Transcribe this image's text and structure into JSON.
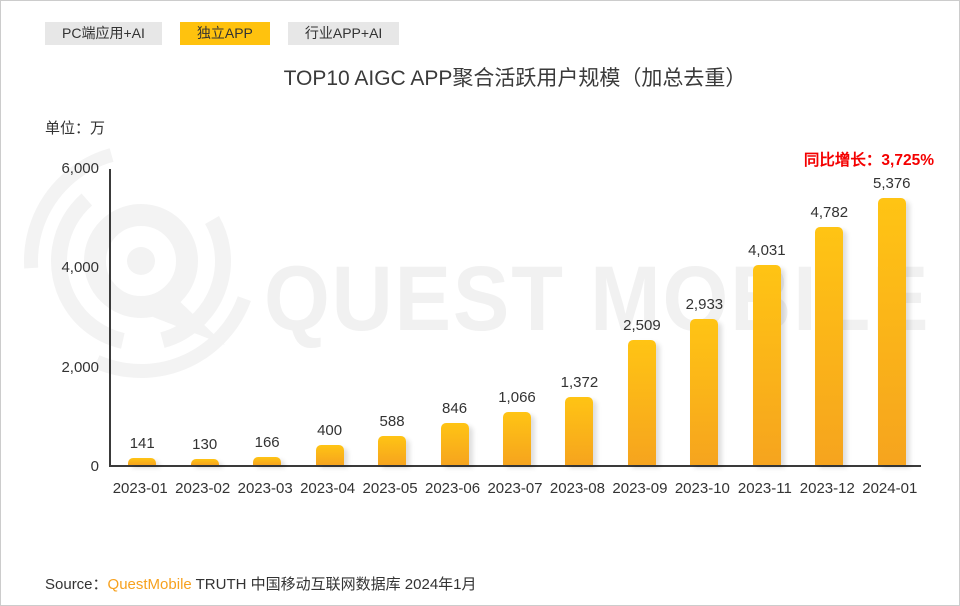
{
  "tabs": [
    {
      "label": "PC端应用+AI",
      "active": false
    },
    {
      "label": "独立APP",
      "active": true
    },
    {
      "label": "行业APP+AI",
      "active": false
    }
  ],
  "header": {
    "title": "TOP10 AIGC APP聚合活跃用户规模（加总去重）",
    "unit_label": "单位：万"
  },
  "growth": {
    "label": "同比增长：",
    "value": "3,725%"
  },
  "watermark": {
    "text": "QUEST MOBILE",
    "logo": "questmobile-logo"
  },
  "source": {
    "prefix": "Source：",
    "brand": "QuestMobile",
    "suffix": " TRUTH 中国移动互联网数据库 2024年1月"
  },
  "colors": {
    "accent_yellow": "#FFC20E",
    "bar_gradient_top": "#FFC414",
    "bar_gradient_bottom": "#F6A41E",
    "growth_red": "#F40000",
    "brand_orange": "#F7A11E",
    "tab_inactive_bg": "#E7E7E7",
    "text_dark": "#333333",
    "watermark_gray": "#F1F1F1"
  },
  "chart_data": {
    "type": "bar",
    "title": "TOP10 AIGC APP聚合活跃用户规模（加总去重）",
    "unit": "万",
    "categories": [
      "2023-01",
      "2023-02",
      "2023-03",
      "2023-04",
      "2023-05",
      "2023-06",
      "2023-07",
      "2023-08",
      "2023-09",
      "2023-10",
      "2023-11",
      "2023-12",
      "2024-01"
    ],
    "values": [
      141,
      130,
      166,
      400,
      588,
      846,
      1066,
      1372,
      2509,
      2933,
      4031,
      4782,
      5376
    ],
    "value_labels": [
      "141",
      "130",
      "166",
      "400",
      "588",
      "846",
      "1,066",
      "1,372",
      "2,509",
      "2,933",
      "4,031",
      "4,782",
      "5,376"
    ],
    "ylim": [
      0,
      6000
    ],
    "yticks": [
      0,
      2000,
      4000,
      6000
    ],
    "ytick_labels": [
      "0",
      "2,000",
      "4,000",
      "6,000"
    ],
    "grid": false,
    "legend": null,
    "annotation": "同比增长：3,725%"
  }
}
